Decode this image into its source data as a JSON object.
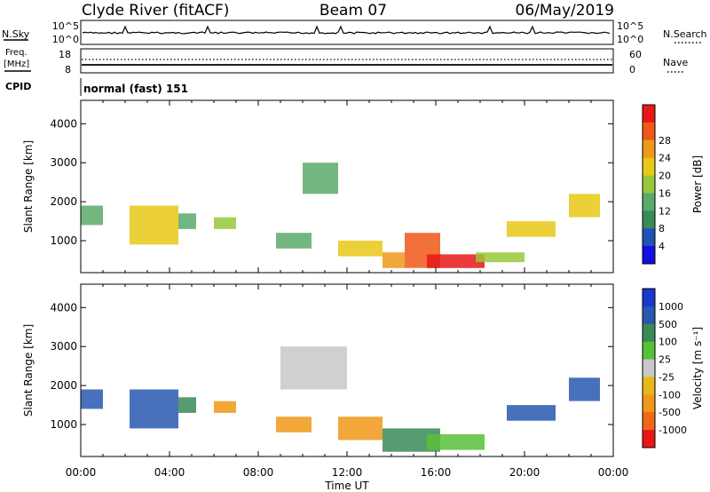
{
  "header": {
    "station": "Clyde River (fitACF)",
    "beam": "Beam 07",
    "date": "06/May/2019"
  },
  "top_panels": {
    "nsky_label": "N.Sky",
    "nsearch_label": "N.Search",
    "noise_ticks": [
      "10^5",
      "10^0"
    ],
    "freq_label": "Freq.",
    "freq_unit": "[MHz]",
    "freq_ticks": [
      "18",
      "8"
    ],
    "nave_label": "Nave",
    "nave_ticks": [
      "60",
      "0"
    ],
    "cpid_label": "CPID",
    "cpid_value": "normal (fast) 151"
  },
  "colors": {
    "power_scale": [
      "#1010e0",
      "#2050b8",
      "#3a8a58",
      "#5aaa6a",
      "#98c83a",
      "#e8c818",
      "#f09818",
      "#f05818",
      "#e81818"
    ],
    "velocity_scale": [
      "#1838d0",
      "#2858b0",
      "#3a8a58",
      "#58c038",
      "#c8c8c8",
      "#e8b818",
      "#f09818",
      "#f06818",
      "#e81818"
    ]
  },
  "chart_data": [
    {
      "type": "heatmap",
      "panel": "power",
      "title": "Clyde River (fitACF) Beam 07 06/May/2019",
      "xlabel": "Time UT",
      "ylabel": "Slant Range [km]",
      "x_ticks": [
        "00:00",
        "04:00",
        "08:00",
        "12:00",
        "16:00",
        "20:00",
        "00:00"
      ],
      "x_range_hours": [
        0,
        24
      ],
      "y_ticks": [
        1000,
        2000,
        3000,
        4000
      ],
      "y_range_km": [
        180,
        4600
      ],
      "colorbar_label": "Power [dB]",
      "colorbar_ticks": [
        "4",
        "8",
        "12",
        "16",
        "20",
        "24",
        "28"
      ],
      "colorbar_range": [
        0,
        32
      ],
      "grid": false,
      "regions": [
        {
          "t0": 0.0,
          "t1": 1.0,
          "r0": 1400,
          "r1": 1900,
          "v": 14
        },
        {
          "t0": 2.2,
          "t1": 4.4,
          "r0": 900,
          "r1": 1900,
          "v": 18
        },
        {
          "t0": 4.4,
          "t1": 5.2,
          "r0": 1300,
          "r1": 1700,
          "v": 13
        },
        {
          "t0": 6.0,
          "t1": 7.0,
          "r0": 1300,
          "r1": 1600,
          "v": 16
        },
        {
          "t0": 8.8,
          "t1": 10.4,
          "r0": 800,
          "r1": 1200,
          "v": 14
        },
        {
          "t0": 10.0,
          "t1": 11.6,
          "r0": 2200,
          "r1": 3000,
          "v": 12
        },
        {
          "t0": 11.6,
          "t1": 13.6,
          "r0": 600,
          "r1": 1000,
          "v": 20
        },
        {
          "t0": 13.6,
          "t1": 14.6,
          "r0": 300,
          "r1": 700,
          "v": 24
        },
        {
          "t0": 14.6,
          "t1": 16.2,
          "r0": 300,
          "r1": 1200,
          "v": 28
        },
        {
          "t0": 15.6,
          "t1": 18.2,
          "r0": 300,
          "r1": 650,
          "v": 30
        },
        {
          "t0": 17.8,
          "t1": 20.0,
          "r0": 450,
          "r1": 700,
          "v": 16
        },
        {
          "t0": 19.2,
          "t1": 21.4,
          "r0": 1100,
          "r1": 1500,
          "v": 18
        },
        {
          "t0": 22.0,
          "t1": 23.4,
          "r0": 1600,
          "r1": 2200,
          "v": 18
        }
      ]
    },
    {
      "type": "heatmap",
      "panel": "velocity",
      "xlabel": "Time UT",
      "ylabel": "Slant Range [km]",
      "x_ticks": [
        "00:00",
        "04:00",
        "08:00",
        "12:00",
        "16:00",
        "20:00",
        "00:00"
      ],
      "x_range_hours": [
        0,
        24
      ],
      "y_ticks": [
        1000,
        2000,
        3000,
        4000
      ],
      "y_range_km": [
        180,
        4600
      ],
      "colorbar_label": "Velocity [m s⁻¹]",
      "colorbar_ticks": [
        "1000",
        "500",
        "100",
        "25",
        "-25",
        "-100",
        "-500",
        "-1000"
      ],
      "grid": false,
      "regions": [
        {
          "t0": 0.0,
          "t1": 1.0,
          "r0": 1400,
          "r1": 1900,
          "v": 800
        },
        {
          "t0": 2.2,
          "t1": 4.4,
          "r0": 900,
          "r1": 1900,
          "v": 700
        },
        {
          "t0": 4.4,
          "t1": 5.2,
          "r0": 1300,
          "r1": 1700,
          "v": 300
        },
        {
          "t0": 6.0,
          "t1": 7.0,
          "r0": 1300,
          "r1": 1600,
          "v": -300
        },
        {
          "t0": 8.8,
          "t1": 10.4,
          "r0": 800,
          "r1": 1200,
          "v": -400
        },
        {
          "t0": 9.0,
          "t1": 12.0,
          "r0": 1900,
          "r1": 3000,
          "v": 0
        },
        {
          "t0": 11.6,
          "t1": 13.6,
          "r0": 600,
          "r1": 1200,
          "v": -500
        },
        {
          "t0": 13.6,
          "t1": 16.2,
          "r0": 300,
          "r1": 900,
          "v": 100
        },
        {
          "t0": 15.6,
          "t1": 18.2,
          "r0": 350,
          "r1": 750,
          "v": 60
        },
        {
          "t0": 19.2,
          "t1": 21.4,
          "r0": 1100,
          "r1": 1500,
          "v": 700
        },
        {
          "t0": 22.0,
          "t1": 23.4,
          "r0": 1600,
          "r1": 2200,
          "v": 500
        }
      ]
    }
  ]
}
